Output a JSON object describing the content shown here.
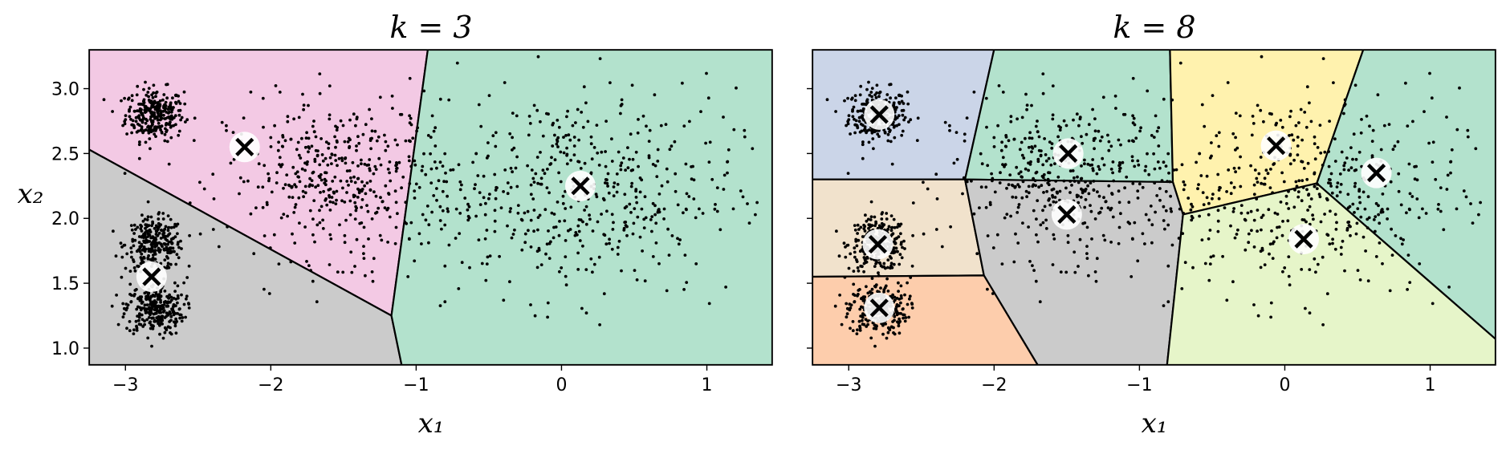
{
  "chart_data": [
    {
      "type": "scatter",
      "title": "k = 3",
      "xlabel": "x₁",
      "ylabel": "x₂",
      "xlim": [
        -3.25,
        1.45
      ],
      "ylim": [
        0.87,
        3.3
      ],
      "xticks": [
        "−3",
        "−2",
        "−1",
        "0",
        "1"
      ],
      "yticks": [
        "1.0",
        "1.5",
        "2.0",
        "2.5",
        "3.0"
      ],
      "grid": false,
      "legend": "none",
      "centroids": [
        {
          "x": -2.18,
          "y": 2.55
        },
        {
          "x": -2.82,
          "y": 1.55
        },
        {
          "x": 0.13,
          "y": 2.25
        }
      ],
      "regions": [
        {
          "color": "#f3c9e4",
          "polygon": [
            [
              -3.25,
              3.3
            ],
            [
              -0.92,
              3.3
            ],
            [
              -1.17,
              1.25
            ],
            [
              -3.25,
              2.53
            ]
          ]
        },
        {
          "color": "#cbcbcb",
          "polygon": [
            [
              -3.25,
              2.53
            ],
            [
              -1.17,
              1.25
            ],
            [
              -1.1,
              0.87
            ],
            [
              -3.25,
              0.87
            ]
          ]
        },
        {
          "color": "#b3e2cd",
          "polygon": [
            [
              -0.92,
              3.3
            ],
            [
              1.45,
              3.3
            ],
            [
              1.45,
              0.87
            ],
            [
              -1.1,
              0.87
            ],
            [
              -1.17,
              1.25
            ]
          ]
        }
      ]
    },
    {
      "type": "scatter",
      "title": "k = 8",
      "xlabel": "x₁",
      "ylabel": "",
      "xlim": [
        -3.25,
        1.45
      ],
      "ylim": [
        0.87,
        3.3
      ],
      "xticks": [
        "−3",
        "−2",
        "−1",
        "0",
        "1"
      ],
      "yticks": [],
      "grid": false,
      "legend": "none",
      "centroids": [
        {
          "x": -2.79,
          "y": 2.8
        },
        {
          "x": -2.8,
          "y": 1.8
        },
        {
          "x": -2.79,
          "y": 1.31
        },
        {
          "x": -1.49,
          "y": 2.5
        },
        {
          "x": -1.5,
          "y": 2.03
        },
        {
          "x": -0.06,
          "y": 2.56
        },
        {
          "x": 0.63,
          "y": 2.35
        },
        {
          "x": 0.13,
          "y": 1.84
        }
      ],
      "regions": [
        {
          "color": "#cbd5e8",
          "polygon": [
            [
              -3.25,
              3.3
            ],
            [
              -2.0,
              3.3
            ],
            [
              -2.2,
              2.3
            ],
            [
              -3.25,
              2.3
            ]
          ]
        },
        {
          "color": "#b3e2cd",
          "polygon": [
            [
              -2.0,
              3.3
            ],
            [
              -0.79,
              3.3
            ],
            [
              -0.77,
              2.28
            ],
            [
              -2.2,
              2.3
            ]
          ]
        },
        {
          "color": "#fff2ae",
          "polygon": [
            [
              -0.79,
              3.3
            ],
            [
              0.54,
              3.3
            ],
            [
              0.22,
              2.27
            ],
            [
              -0.7,
              2.03
            ],
            [
              -0.77,
              2.28
            ]
          ]
        },
        {
          "color": "#b3e2cd",
          "polygon": [
            [
              0.54,
              3.3
            ],
            [
              1.45,
              3.3
            ],
            [
              1.45,
              1.07
            ],
            [
              0.22,
              2.27
            ]
          ]
        },
        {
          "color": "#f1e2cc",
          "polygon": [
            [
              -3.25,
              2.3
            ],
            [
              -2.2,
              2.3
            ],
            [
              -2.07,
              1.56
            ],
            [
              -3.25,
              1.55
            ]
          ]
        },
        {
          "color": "#cbcbcb",
          "polygon": [
            [
              -2.2,
              2.3
            ],
            [
              -0.77,
              2.28
            ],
            [
              -0.7,
              2.03
            ],
            [
              -0.81,
              0.87
            ],
            [
              -1.7,
              0.87
            ],
            [
              -2.07,
              1.56
            ]
          ]
        },
        {
          "color": "#e6f5c9",
          "polygon": [
            [
              -0.7,
              2.03
            ],
            [
              0.22,
              2.27
            ],
            [
              1.45,
              1.07
            ],
            [
              1.45,
              0.87
            ],
            [
              -0.81,
              0.87
            ]
          ]
        },
        {
          "color": "#fdcdac",
          "polygon": [
            [
              -3.25,
              1.55
            ],
            [
              -2.07,
              1.56
            ],
            [
              -1.7,
              0.87
            ],
            [
              -3.25,
              0.87
            ]
          ]
        }
      ]
    }
  ],
  "blobs": [
    {
      "x": -2.8,
      "y": 2.8,
      "sx": 0.1,
      "sy": 0.1,
      "n": 280
    },
    {
      "x": -2.8,
      "y": 1.8,
      "sx": 0.1,
      "sy": 0.1,
      "n": 280
    },
    {
      "x": -2.8,
      "y": 1.3,
      "sx": 0.1,
      "sy": 0.1,
      "n": 280
    },
    {
      "x": -1.5,
      "y": 2.3,
      "sx": 0.4,
      "sy": 0.3,
      "n": 440
    },
    {
      "x": 0.1,
      "y": 2.2,
      "sx": 0.55,
      "sy": 0.4,
      "n": 500
    }
  ]
}
